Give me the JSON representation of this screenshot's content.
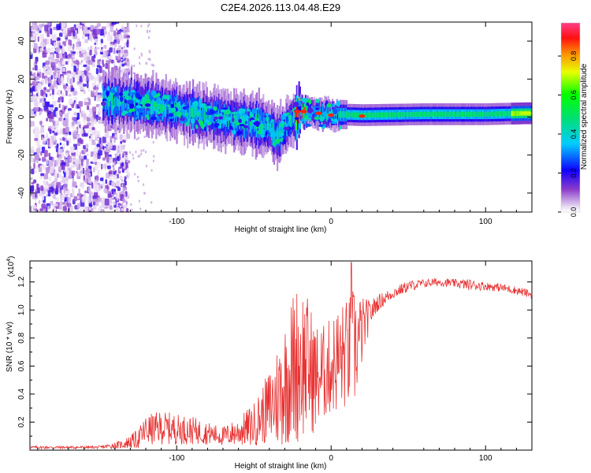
{
  "figure": {
    "title": "C2E4.2026.113.04.48.E29"
  },
  "colors": {
    "snr_line": "#e83232",
    "axis": "#000000"
  },
  "chart_data": [
    {
      "type": "heatmap",
      "title": "C2E4.2026.113.04.48.E29",
      "xlabel": "Height of straight line (km)",
      "ylabel": "Frequency (Hz)",
      "xlim": [
        -195,
        130
      ],
      "ylim": [
        -50,
        50
      ],
      "xticks": [
        -100,
        0,
        100
      ],
      "xtick_labels": [
        "-100",
        "0",
        "100"
      ],
      "yticks": [
        -40,
        -20,
        0,
        20,
        40
      ],
      "ytick_labels": [
        "-40",
        "-20",
        "0",
        "20",
        "40"
      ],
      "colorbar": {
        "label": "Normalized spectral amplitude",
        "range": [
          0,
          0.97
        ],
        "ticks": [
          0,
          0.2,
          0.4,
          0.6,
          0.8
        ],
        "tick_labels": [
          "0.0",
          "0.2",
          "0.4",
          "0.6",
          "0.8"
        ],
        "colormap": "rainbow (violet-blue-cyan-green-yellow-orange-red-magenta)"
      },
      "features": [
        {
          "name": "noise_region",
          "x_range": [
            -195,
            -135
          ],
          "freq_range": [
            -50,
            50
          ],
          "amplitude_range": [
            0.02,
            0.2
          ]
        },
        {
          "name": "ridge_start",
          "x": -140,
          "freq": 9,
          "amplitude": 0.4
        },
        {
          "name": "ridge_mid",
          "x": -75,
          "freq": 0,
          "amplitude": 0.4
        },
        {
          "name": "ridge_dip",
          "x": -35,
          "freq": -10,
          "amplitude": 0.3
        },
        {
          "name": "ridge_hot",
          "x": -20,
          "freq": 3,
          "amplitude": 0.85
        },
        {
          "name": "ridge_flat",
          "x_range": [
            10,
            130
          ],
          "freq": 1.5,
          "amplitude": 0.5
        },
        {
          "name": "ridge_end",
          "x": 125,
          "freq": 2,
          "amplitude": 0.7
        }
      ]
    },
    {
      "type": "line",
      "title": "",
      "xlabel": "Height of straight line (km)",
      "ylabel": "SNR (10 * v/v)",
      "y_scale_label": "(x10^4)",
      "xlim": [
        -195,
        130
      ],
      "ylim": [
        0,
        1.35
      ],
      "xticks": [
        -100,
        0,
        100
      ],
      "xtick_labels": [
        "-100",
        "0",
        "100"
      ],
      "yticks": [
        0.2,
        0.4,
        0.6,
        0.8,
        1.0,
        1.2
      ],
      "ytick_labels": [
        "0.2",
        "0.4",
        "0.6",
        "0.8",
        "1.0",
        "1.2"
      ],
      "series": [
        {
          "name": "SNR",
          "envelope": {
            "x": [
              -195,
              -150,
              -135,
              -125,
              -120,
              -110,
              -100,
              -90,
              -80,
              -70,
              -60,
              -50,
              -45,
              -40,
              -35,
              -30,
              -25,
              -20,
              -15,
              -10,
              -5,
              0,
              5,
              10,
              15,
              20,
              25,
              30,
              40,
              50,
              60,
              70,
              80,
              90,
              100,
              110,
              120,
              130
            ],
            "mean": [
              0.02,
              0.02,
              0.04,
              0.08,
              0.14,
              0.16,
              0.15,
              0.14,
              0.12,
              0.1,
              0.13,
              0.18,
              0.25,
              0.3,
              0.38,
              0.48,
              0.58,
              0.65,
              0.6,
              0.52,
              0.55,
              0.6,
              0.65,
              0.68,
              0.72,
              0.85,
              0.97,
              1.05,
              1.12,
              1.17,
              1.19,
              1.2,
              1.19,
              1.18,
              1.17,
              1.16,
              1.14,
              1.11
            ],
            "spread": [
              0.01,
              0.01,
              0.03,
              0.07,
              0.11,
              0.12,
              0.11,
              0.1,
              0.08,
              0.07,
              0.1,
              0.16,
              0.2,
              0.28,
              0.38,
              0.45,
              0.55,
              0.6,
              0.5,
              0.4,
              0.35,
              0.35,
              0.4,
              0.4,
              0.45,
              0.25,
              0.1,
              0.06,
              0.04,
              0.04,
              0.03,
              0.03,
              0.03,
              0.04,
              0.03,
              0.03,
              0.03,
              0.03
            ]
          },
          "peak": {
            "x": 13,
            "y": 1.34
          }
        }
      ]
    }
  ]
}
